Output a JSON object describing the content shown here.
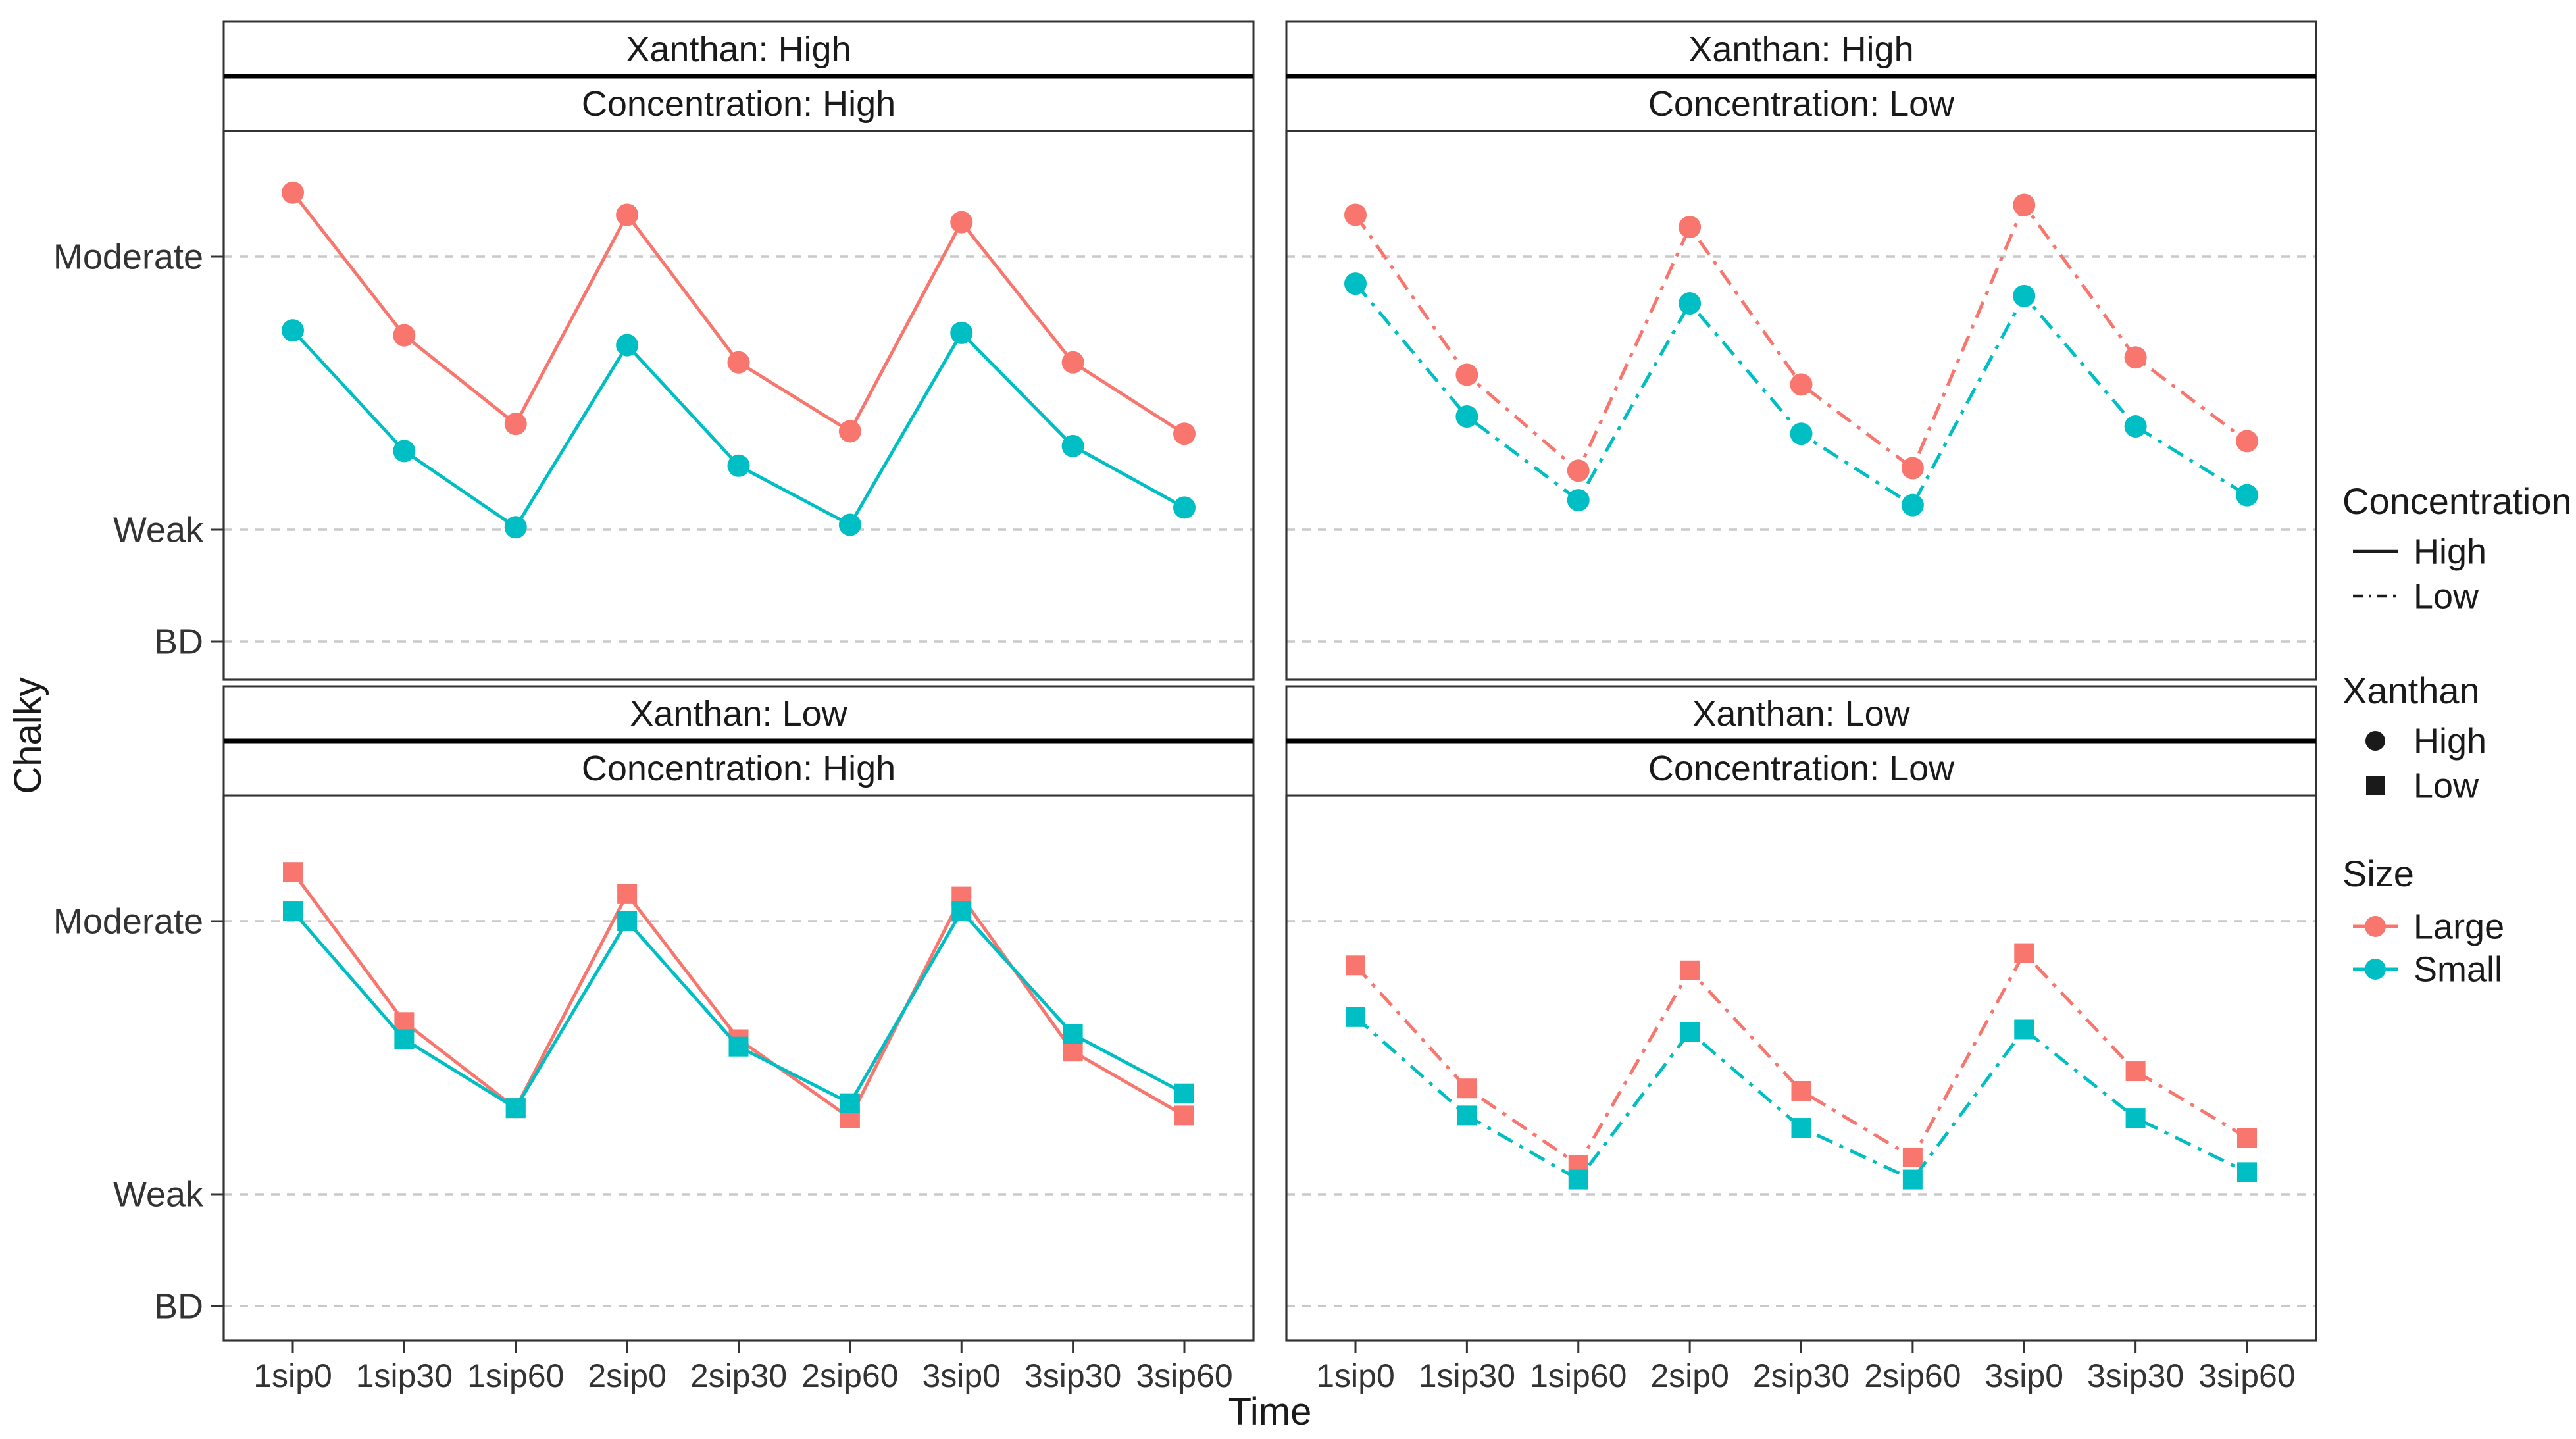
{
  "figure": {
    "background": "#FFFFFF",
    "description": "Faceted line chart of perceived Chalky intensity over sip/time points"
  },
  "chart_data": {
    "type": "line",
    "title": "",
    "xlabel": "Time",
    "ylabel": "Chalky",
    "x_categories": [
      "1sip0",
      "1sip30",
      "1sip60",
      "2sip0",
      "2sip30",
      "2sip60",
      "3sip0",
      "3sip30",
      "3sip60"
    ],
    "y_axis": {
      "tick_labels": [
        "Moderate",
        "Weak",
        "BD"
      ],
      "anchors": {
        "Moderate": 17.2,
        "Weak": 6.1,
        "BD": 1.4
      },
      "range": [
        0,
        22.5
      ],
      "gridlines": "dashed",
      "scale_note": "labeled magnitude scale; values below are in scale units read off the gridlines"
    },
    "facets": {
      "row_variable": "Xanthan",
      "col_variable": "Concentration",
      "rows": [
        "High",
        "Low"
      ],
      "cols": [
        "High",
        "Low"
      ]
    },
    "style": {
      "linetype_by_concentration": {
        "High": "solid",
        "Low": "dash-dot"
      },
      "marker_by_xanthan": {
        "High": "circle",
        "Low": "square"
      },
      "color_by_size": {
        "Large": "#F8766D",
        "Small": "#00BFC4"
      }
    },
    "panels": [
      {
        "id": "top-left",
        "xanthan": "High",
        "concentration": "High",
        "strip_top": "Xanthan: High",
        "strip_bottom": "Concentration: High",
        "series": [
          {
            "name": "Large",
            "values": [
              19.8,
              14.0,
              10.4,
              18.9,
              12.9,
              10.1,
              18.6,
              12.9,
              10.0
            ]
          },
          {
            "name": "Small",
            "values": [
              14.2,
              9.3,
              6.2,
              13.6,
              8.7,
              6.3,
              14.1,
              9.5,
              7.0
            ]
          }
        ]
      },
      {
        "id": "top-right",
        "xanthan": "High",
        "concentration": "Low",
        "strip_top": "Xanthan: High",
        "strip_bottom": "Concentration: Low",
        "series": [
          {
            "name": "Large",
            "values": [
              18.9,
              12.4,
              8.5,
              18.4,
              12.0,
              8.6,
              19.3,
              13.1,
              9.7
            ]
          },
          {
            "name": "Small",
            "values": [
              16.1,
              10.7,
              7.3,
              15.3,
              10.0,
              7.1,
              15.6,
              10.3,
              7.5
            ]
          }
        ]
      },
      {
        "id": "bottom-left",
        "xanthan": "Low",
        "concentration": "High",
        "strip_top": "Xanthan: Low",
        "strip_bottom": "Concentration: High",
        "series": [
          {
            "name": "Large",
            "values": [
              19.2,
              13.1,
              9.6,
              18.3,
              12.4,
              9.2,
              18.2,
              11.9,
              9.3
            ]
          },
          {
            "name": "Small",
            "values": [
              17.6,
              12.4,
              9.6,
              17.2,
              12.1,
              9.8,
              17.6,
              12.6,
              10.2
            ]
          }
        ]
      },
      {
        "id": "bottom-right",
        "xanthan": "Low",
        "concentration": "Low",
        "strip_top": "Xanthan: Low",
        "strip_bottom": "Concentration: Low",
        "series": [
          {
            "name": "Large",
            "values": [
              15.4,
              10.4,
              7.3,
              15.2,
              10.3,
              7.6,
              15.9,
              11.1,
              8.4
            ]
          },
          {
            "name": "Small",
            "values": [
              13.3,
              9.3,
              6.7,
              12.7,
              8.8,
              6.7,
              12.8,
              9.2,
              7.0
            ]
          }
        ]
      }
    ],
    "legend": {
      "position": "right",
      "groups": [
        {
          "title": "Concentration",
          "items": [
            {
              "label": "High",
              "glyph": "solid-line"
            },
            {
              "label": "Low",
              "glyph": "dash-dot-line"
            }
          ]
        },
        {
          "title": "Xanthan",
          "items": [
            {
              "label": "High",
              "glyph": "filled-circle"
            },
            {
              "label": "Low",
              "glyph": "filled-square"
            }
          ]
        },
        {
          "title": "Size",
          "items": [
            {
              "label": "Large",
              "glyph": "point-with-line",
              "color": "#F8766D"
            },
            {
              "label": "Small",
              "glyph": "point-with-line",
              "color": "#00BFC4"
            }
          ]
        }
      ]
    },
    "colors": {
      "large": "#F8766D",
      "small": "#00BFC4",
      "gridline": "#C9C9C9",
      "panel_border": "#333333",
      "strip_border": "#333333",
      "strip_divider": "#000000",
      "text": "#1A1A1A",
      "tick_text": "#333333",
      "legend_key": "#1A1A1A"
    }
  }
}
